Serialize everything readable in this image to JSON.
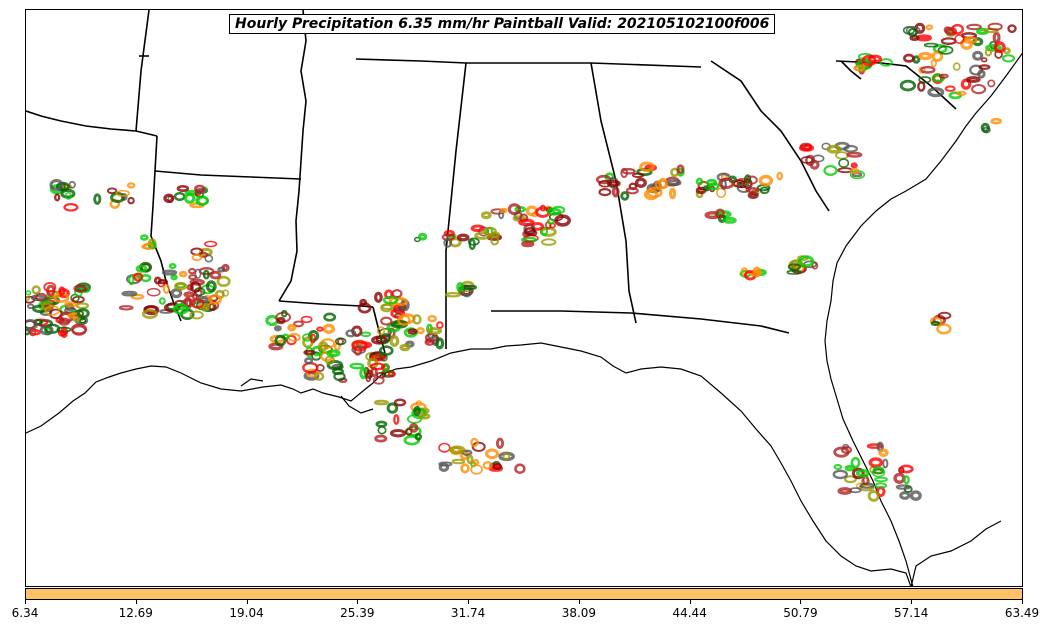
{
  "title": "Hourly Precipitation 6.35 mm/hr Paintball Valid: 202105102100f006",
  "colorbar": {
    "color": "#FFC266",
    "ticks": [
      "6.34",
      "12.69",
      "19.04",
      "25.39",
      "31.74",
      "38.09",
      "44.44",
      "50.79",
      "57.14",
      "63.49"
    ]
  },
  "member_colors": [
    "#00CC00",
    "#FF0000",
    "#FF8C00",
    "#8B0000",
    "#999900",
    "#006400",
    "#B22222",
    "#555555"
  ]
}
